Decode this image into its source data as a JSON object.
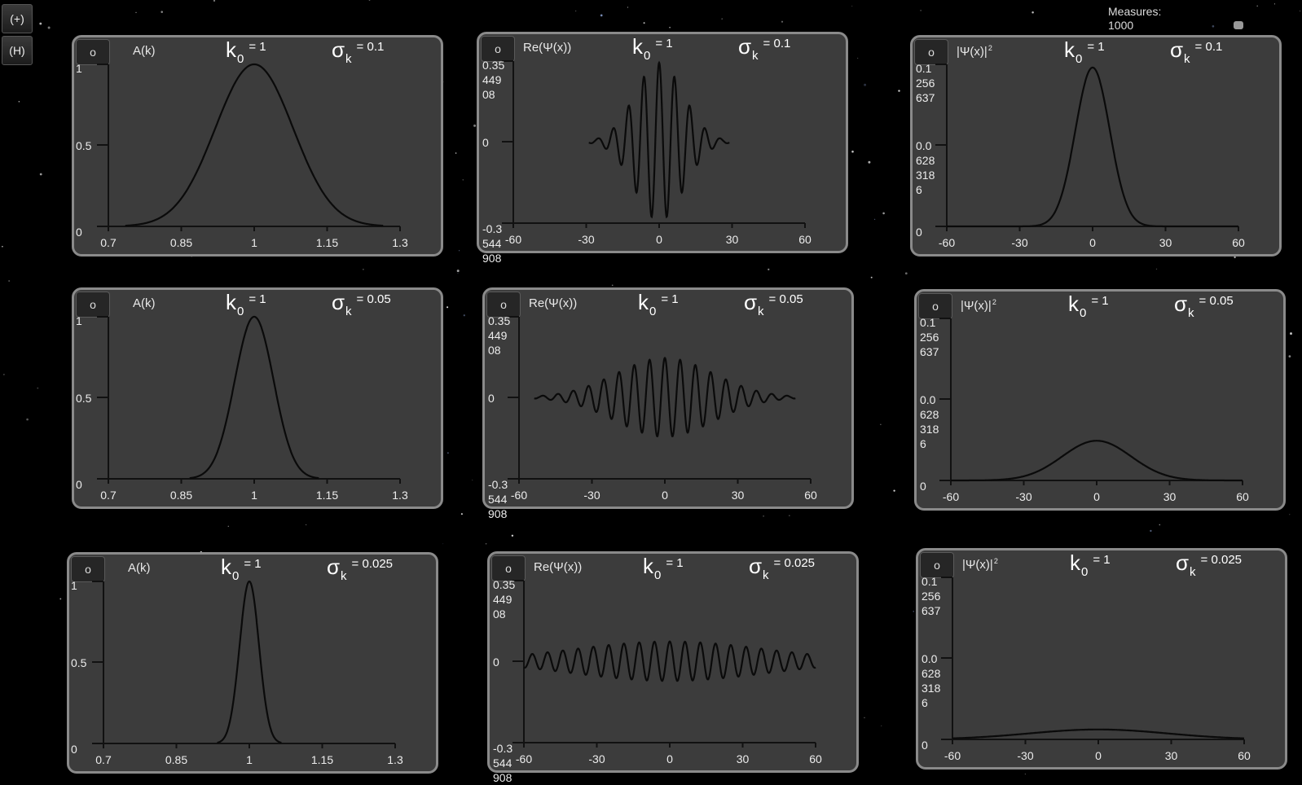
{
  "sidebar": {
    "zoom_button": "(+)",
    "help_button": "(H)"
  },
  "measures": {
    "label": "Measures:",
    "value": "1000"
  },
  "panel_button_label": "o",
  "parameter_labels": {
    "k_symbol": "k",
    "k_subscript": "0",
    "sigma_symbol": "σ",
    "sigma_subscript": "k"
  },
  "rows": [
    {
      "k0": "= 1",
      "sigma_k": "= 0.1",
      "sigma_value": 0.1
    },
    {
      "k0": "= 1",
      "sigma_k": "= 0.05",
      "sigma_value": 0.05
    },
    {
      "k0": "= 1",
      "sigma_k": "= 0.025",
      "sigma_value": 0.025
    }
  ],
  "columns": [
    {
      "kind": "amplitude",
      "title": "A(k)",
      "y_ticks": [
        "1",
        "0.5",
        "0"
      ],
      "x_ticks": [
        "0.7",
        "0.85",
        "1",
        "1.15",
        "1.3"
      ],
      "x_range": [
        0.7,
        1.3
      ]
    },
    {
      "kind": "real_part",
      "title": "Re(Ψ(x))",
      "y_ticks": [
        "0.35\n449\n08",
        "0",
        "-0.3\n544\n908"
      ],
      "x_ticks": [
        "-60",
        "-30",
        "0",
        "30",
        "60"
      ],
      "x_range": [
        -60,
        60
      ]
    },
    {
      "kind": "probability",
      "title": "|Ψ(x)|",
      "title_sup": "2",
      "y_ticks": [
        "0.1\n256\n637",
        "0.0\n628\n318\n6",
        "0"
      ],
      "x_ticks": [
        "-60",
        "-30",
        "0",
        "30",
        "60"
      ],
      "x_range": [
        -60,
        60
      ]
    }
  ],
  "chart_data": [
    {
      "type": "line",
      "title": "A(k)",
      "sigma_k": 0.1,
      "k0": 1,
      "xlim": [
        0.7,
        1.3
      ],
      "ylim": [
        0,
        1
      ],
      "peak": 1
    },
    {
      "type": "line",
      "title": "Re(Ψ(x))",
      "sigma_k": 0.1,
      "k0": 1,
      "xlim": [
        -60,
        60
      ],
      "ylim": [
        -0.3544908,
        0.3544908
      ],
      "peak": 0.3544908
    },
    {
      "type": "line",
      "title": "|Ψ(x)|²",
      "sigma_k": 0.1,
      "k0": 1,
      "xlim": [
        -60,
        60
      ],
      "ylim": [
        0,
        0.1256637
      ],
      "peak": 0.1256637
    },
    {
      "type": "line",
      "title": "A(k)",
      "sigma_k": 0.05,
      "k0": 1,
      "xlim": [
        0.7,
        1.3
      ],
      "ylim": [
        0,
        1
      ],
      "peak": 1
    },
    {
      "type": "line",
      "title": "Re(Ψ(x))",
      "sigma_k": 0.05,
      "k0": 1,
      "xlim": [
        -60,
        60
      ],
      "ylim": [
        -0.3544908,
        0.3544908
      ],
      "peak": 0.1772454
    },
    {
      "type": "line",
      "title": "|Ψ(x)|²",
      "sigma_k": 0.05,
      "k0": 1,
      "xlim": [
        -60,
        60
      ],
      "ylim": [
        0,
        0.1256637
      ],
      "peak": 0.0314159
    },
    {
      "type": "line",
      "title": "A(k)",
      "sigma_k": 0.025,
      "k0": 1,
      "xlim": [
        0.7,
        1.3
      ],
      "ylim": [
        0,
        1
      ],
      "peak": 1
    },
    {
      "type": "line",
      "title": "Re(Ψ(x))",
      "sigma_k": 0.025,
      "k0": 1,
      "xlim": [
        -60,
        60
      ],
      "ylim": [
        -0.3544908,
        0.3544908
      ],
      "peak": 0.0886227
    },
    {
      "type": "line",
      "title": "|Ψ(x)|²",
      "sigma_k": 0.025,
      "k0": 1,
      "xlim": [
        -60,
        60
      ],
      "ylim": [
        0,
        0.1256637
      ],
      "peak": 0.007854
    }
  ]
}
